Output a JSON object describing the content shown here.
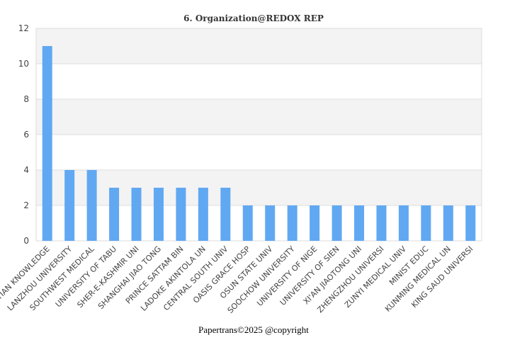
{
  "chart_data": {
    "type": "bar",
    "title": "6. Organization@REDOX REP",
    "categories": [
      "EGYPTIAN KNOWLEDGE",
      "LANZHOU UNIVERSITY",
      "SOUTHWEST MEDICAL",
      "UNIVERSITY OF TABU",
      "SHER-E-KASHMIR UNI",
      "SHANGHAI JIAO TONG",
      "PRINCE SATTAM BIN",
      "LADOKE AKINTOLA UN",
      "CENTRAL SOUTH UNIV",
      "OASIS GRACE HOSP",
      "OSUN STATE UNIV",
      "SOOCHOW UNIVERSITY",
      "UNIVERSITY OF NIGE",
      "UNIVERSITY OF SIEN",
      "XI'AN JIAOTONG UNI",
      "ZHENGZHOU UNIVERSI",
      "ZUNYI MEDICAL UNIV",
      "MINIST EDUC",
      "KUNMING MEDICAL UN",
      "KING SAUD UNIVERSI"
    ],
    "values": [
      11,
      4,
      4,
      3,
      3,
      3,
      3,
      3,
      3,
      2,
      2,
      2,
      2,
      2,
      2,
      2,
      2,
      2,
      2,
      2
    ],
    "xlabel": "",
    "ylabel": "",
    "ylim": [
      0,
      12
    ],
    "yticks": [
      0,
      2,
      4,
      6,
      8,
      10,
      12
    ],
    "grid": true,
    "bar_color": "#61a8f2",
    "band_color": "#f3f3f3"
  },
  "footer": "Papertrans©2025 @copyright"
}
